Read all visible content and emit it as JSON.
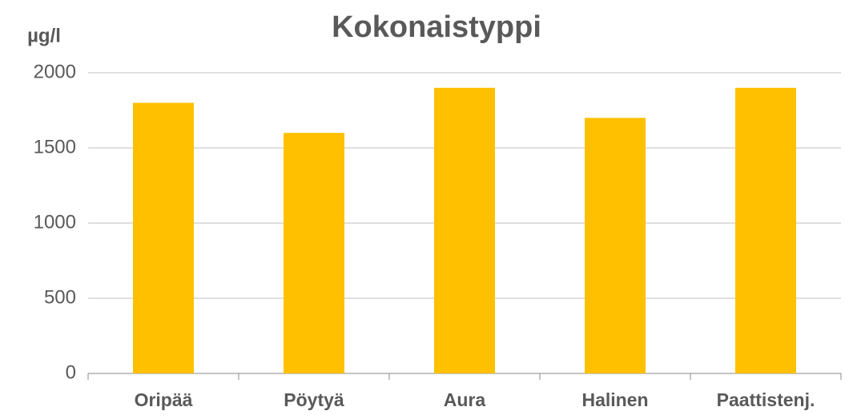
{
  "chart_data": {
    "type": "bar",
    "title": "Kokonaistyppi",
    "y_label": "µg/l",
    "categories": [
      "Oripää",
      "Pöytyä",
      "Aura",
      "Halinen",
      "Paattistenj."
    ],
    "values": [
      1800,
      1600,
      1900,
      1700,
      1900
    ],
    "color": "#ffc000",
    "ylim": [
      0,
      2000
    ],
    "yticks": [
      0,
      500,
      1000,
      1500,
      2000
    ],
    "grid": true
  }
}
